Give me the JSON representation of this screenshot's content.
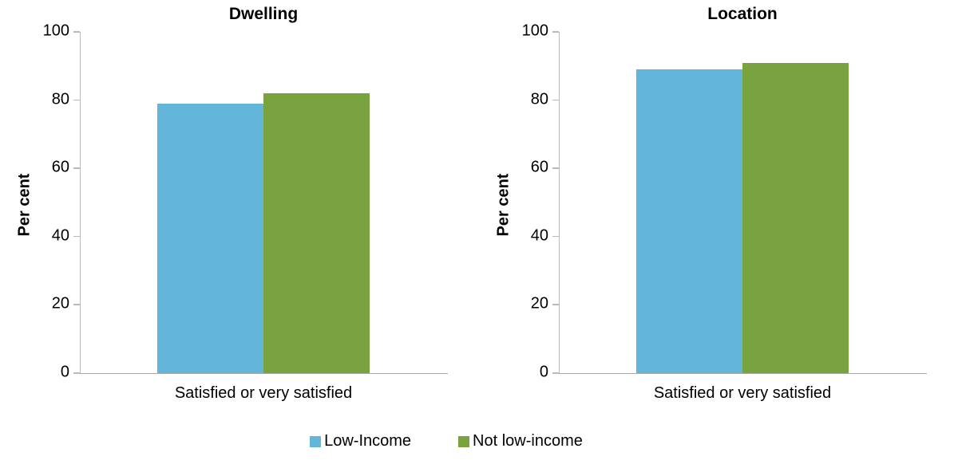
{
  "chart_data": [
    {
      "type": "bar",
      "title": "Dwelling",
      "ylabel": "Per cent",
      "xlabel": "",
      "categories": [
        "Satisfied or very satisfied"
      ],
      "series": [
        {
          "name": "Low-Income",
          "values": [
            79
          ],
          "color": "#63B6DA"
        },
        {
          "name": "Not low-income",
          "values": [
            82
          ],
          "color": "#78A33E"
        }
      ],
      "ylim": [
        0,
        100
      ],
      "yticks": [
        100,
        80,
        60,
        40,
        20,
        0
      ],
      "grid": false,
      "legend_position": "bottom"
    },
    {
      "type": "bar",
      "title": "Location",
      "ylabel": "Per cent",
      "xlabel": "",
      "categories": [
        "Satisfied or very satisfied"
      ],
      "series": [
        {
          "name": "Low-Income",
          "values": [
            89
          ],
          "color": "#63B6DA"
        },
        {
          "name": "Not low-income",
          "values": [
            91
          ],
          "color": "#78A33E"
        }
      ],
      "ylim": [
        0,
        100
      ],
      "yticks": [
        100,
        80,
        60,
        40,
        20,
        0
      ],
      "grid": false,
      "legend_position": "bottom"
    }
  ],
  "legend": {
    "items": [
      {
        "label": "Low-Income",
        "color": "#63B6DA"
      },
      {
        "label": "Not low-income",
        "color": "#78A33E"
      }
    ]
  },
  "colors": {
    "axis": "#B9B9B9",
    "bar_blue": "#63B6DA",
    "bar_green": "#78A33E"
  }
}
